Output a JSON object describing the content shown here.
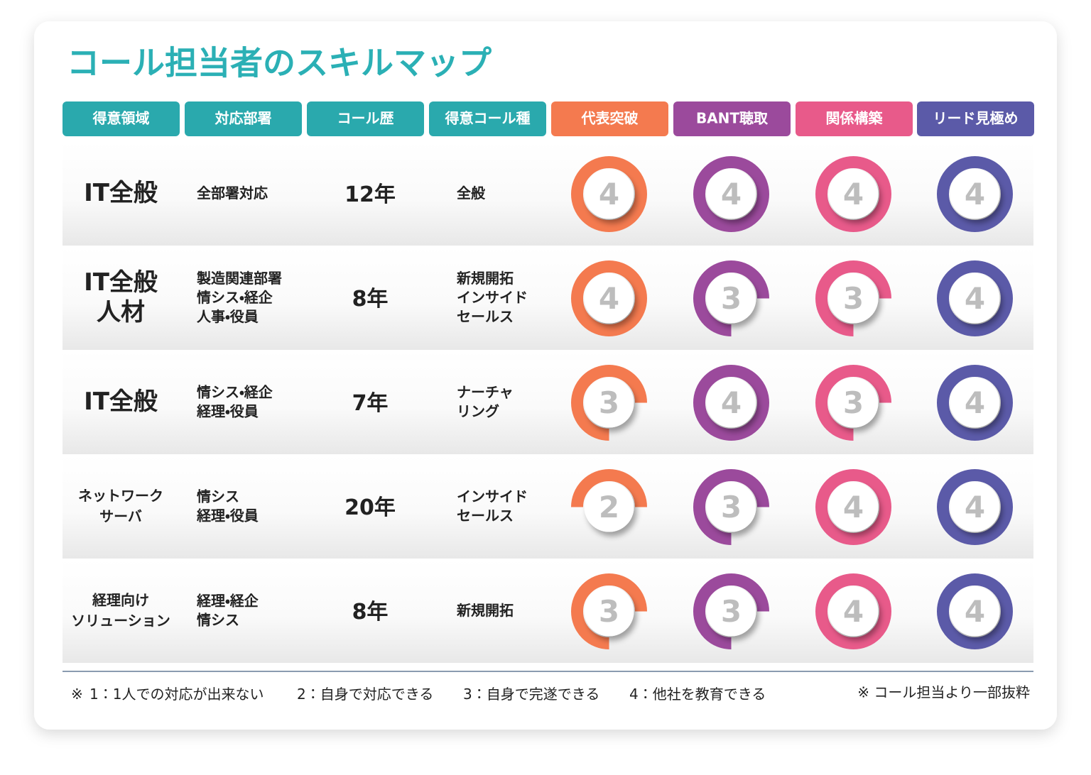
{
  "title": "コール担当者のスキルマップ",
  "headers": [
    "得意領域",
    "対応部署",
    "コール歴",
    "得意コール種",
    "代表突破",
    "BANT聴取",
    "関係構築",
    "リード見極め"
  ],
  "rows": [
    {
      "domain": [
        "IT全般"
      ],
      "departments": [
        "全部署対応"
      ],
      "years": "12年",
      "call_types": [
        "全般"
      ],
      "scores": [
        4,
        4,
        4,
        4
      ]
    },
    {
      "domain": [
        "IT全般",
        "人材"
      ],
      "departments": [
        "製造関連部署",
        "情シス・経企",
        "人事・役員"
      ],
      "years": "8年",
      "call_types": [
        "新規開拓",
        "インサイド",
        "セールス"
      ],
      "scores": [
        4,
        3,
        3,
        4
      ]
    },
    {
      "domain": [
        "IT全般"
      ],
      "departments": [
        "情シス・経企",
        "経理・役員"
      ],
      "years": "7年",
      "call_types": [
        "ナーチャ",
        "リング"
      ],
      "scores": [
        3,
        4,
        3,
        4
      ]
    },
    {
      "domain": [
        "ネットワーク",
        "サーバ"
      ],
      "departments": [
        "情シス",
        "経理・役員"
      ],
      "years": "20年",
      "call_types": [
        "インサイド",
        "セールス"
      ],
      "scores": [
        2,
        3,
        4,
        4
      ]
    },
    {
      "domain": [
        "経理向け",
        "ソリューション"
      ],
      "departments": [
        "経理・経企",
        "情シス"
      ],
      "years": "8年",
      "call_types": [
        "新規開拓"
      ],
      "scores": [
        3,
        3,
        4,
        4
      ]
    }
  ],
  "legend": {
    "mark": "※",
    "items": [
      "1：1人での対応が出来ない",
      "2：自身で対応できる",
      "3：自身で完遂できる",
      "4：他社を教育できる"
    ]
  },
  "note": "※ コール担当より一部抜粋"
}
